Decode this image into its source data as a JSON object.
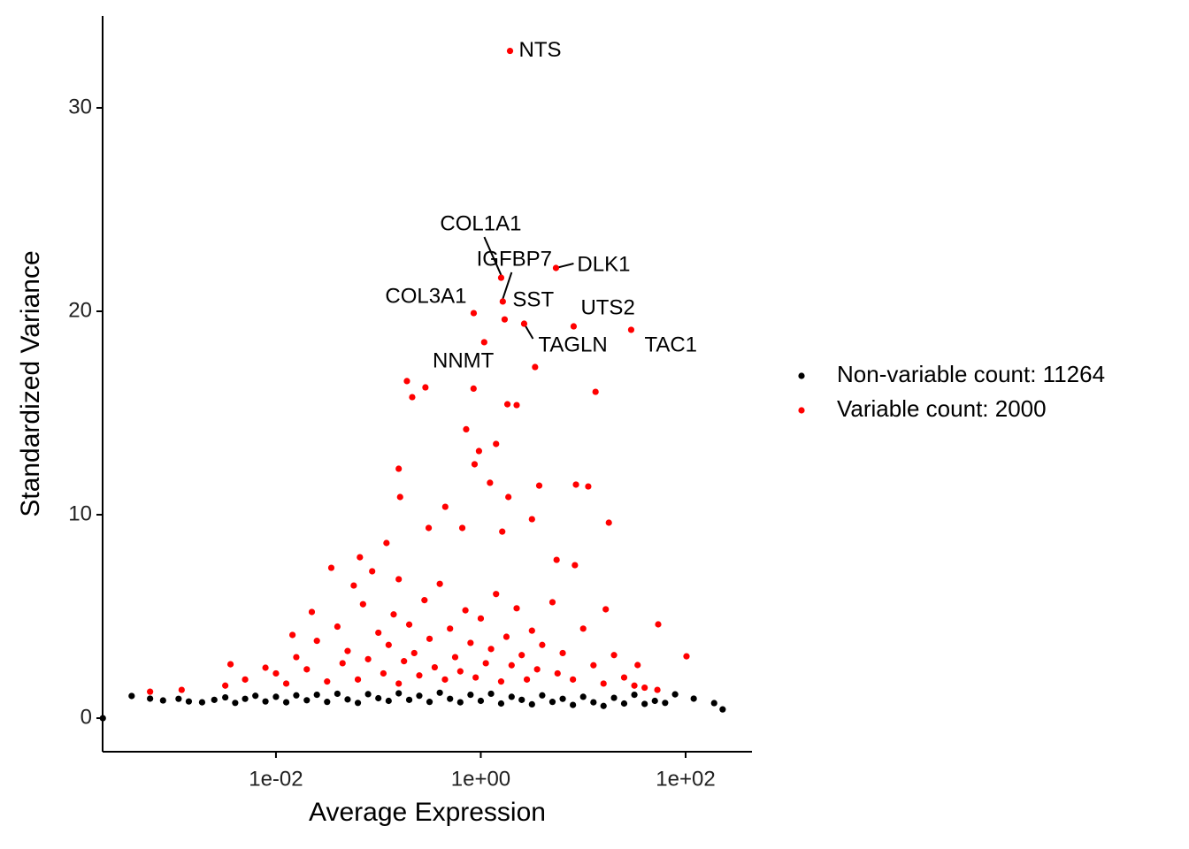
{
  "chart_data": {
    "type": "scatter",
    "x_label": "Average Expression",
    "y_label": "Standardized Variance",
    "xscale": "log",
    "xlim": [
      0.000203,
      444.6
    ],
    "ylim": [
      -1.65,
      34.52
    ],
    "xticks": [
      {
        "value": 0.01,
        "label": "1e-02"
      },
      {
        "value": 1,
        "label": "1e+00"
      },
      {
        "value": 100,
        "label": "1e+02"
      }
    ],
    "yticks": [
      0,
      10,
      20,
      30
    ],
    "legend": "right",
    "series": [
      {
        "name": "Non-variable count: 11264",
        "color": "#000000",
        "x": [
          0.000204,
          0.00039,
          0.00059,
          0.00079,
          0.00112,
          0.00141,
          0.0019,
          0.0025,
          0.0032,
          0.004,
          0.005,
          0.0063,
          0.0079,
          0.01,
          0.0126,
          0.0158,
          0.02,
          0.0251,
          0.0316,
          0.0398,
          0.0501,
          0.0631,
          0.0794,
          0.1,
          0.126,
          0.158,
          0.2,
          0.251,
          0.316,
          0.398,
          0.501,
          0.631,
          0.794,
          1,
          1.26,
          1.58,
          2,
          2.51,
          3.16,
          3.98,
          5.01,
          6.31,
          7.94,
          10,
          12.6,
          15.8,
          20,
          25.1,
          31.6,
          39.8,
          50.1,
          63.1,
          79,
          120,
          190,
          230
        ],
        "values": [
          0.0,
          1.09,
          0.96,
          0.87,
          0.95,
          0.82,
          0.78,
          0.9,
          1.02,
          0.75,
          0.95,
          1.1,
          0.82,
          1.05,
          0.78,
          1.12,
          0.88,
          1.15,
          0.8,
          1.2,
          0.92,
          0.75,
          1.18,
          0.98,
          0.85,
          1.22,
          0.9,
          1.1,
          0.8,
          1.25,
          0.95,
          0.78,
          1.15,
          0.85,
          1.2,
          0.72,
          1.05,
          0.9,
          0.68,
          1.12,
          0.8,
          0.95,
          0.65,
          1.05,
          0.78,
          0.6,
          1.0,
          0.72,
          1.15,
          0.7,
          0.85,
          0.75,
          1.17,
          0.96,
          0.74,
          0.43
        ]
      },
      {
        "name": "Variable count: 2000",
        "color": "#ff0000",
        "x": [
          0.00059,
          0.0012,
          0.0036,
          0.0079,
          0.0145,
          0.0224,
          0.0347,
          0.0575,
          0.066,
          0.087,
          0.12,
          0.158,
          0.158,
          0.163,
          0.19,
          0.214,
          0.288,
          0.31,
          0.45,
          0.66,
          0.72,
          0.85,
          0.87,
          0.96,
          1.23,
          1.41,
          1.62,
          1.82,
          1.86,
          2.24,
          3.16,
          3.39,
          3.72,
          5.5,
          8.3,
          8.5,
          11.2,
          13.2,
          17.8,
          16.6,
          34,
          54,
          102,
          53,
          0.0032,
          0.005,
          0.01,
          0.0126,
          0.0158,
          0.02,
          0.0251,
          0.0316,
          0.0398,
          0.0447,
          0.0501,
          0.0631,
          0.0708,
          0.0794,
          0.1,
          0.112,
          0.126,
          0.141,
          0.158,
          0.178,
          0.2,
          0.224,
          0.251,
          0.282,
          0.316,
          0.355,
          0.398,
          0.447,
          0.501,
          0.562,
          0.631,
          0.708,
          0.794,
          0.891,
          1,
          1.12,
          1.26,
          1.41,
          1.58,
          1.78,
          2,
          2.24,
          2.51,
          2.82,
          3.16,
          3.55,
          3.98,
          5.01,
          5.62,
          6.31,
          7.94,
          10,
          12.6,
          15.8,
          20,
          25.1,
          31.6,
          39.8
        ],
        "values": [
          1.3,
          1.39,
          2.65,
          2.48,
          4.09,
          5.22,
          7.39,
          6.52,
          7.91,
          7.22,
          8.61,
          6.83,
          12.26,
          10.87,
          16.57,
          15.78,
          16.26,
          9.35,
          10.39,
          9.35,
          14.2,
          16.2,
          12.48,
          13.13,
          11.57,
          13.48,
          9.17,
          15.43,
          10.87,
          15.39,
          9.78,
          17.26,
          11.43,
          7.78,
          7.52,
          11.48,
          11.39,
          16.04,
          9.61,
          5.35,
          2.61,
          4.61,
          3.04,
          1.39,
          1.6,
          1.9,
          2.2,
          1.7,
          3.0,
          2.4,
          3.8,
          1.8,
          4.5,
          2.7,
          3.3,
          1.9,
          5.6,
          2.9,
          4.2,
          2.2,
          3.6,
          5.1,
          1.7,
          2.8,
          4.6,
          3.2,
          2.1,
          5.8,
          3.9,
          2.5,
          6.6,
          1.9,
          4.4,
          3.0,
          2.3,
          5.3,
          3.7,
          2.0,
          4.9,
          2.7,
          3.4,
          6.1,
          1.8,
          4.0,
          2.6,
          5.4,
          3.1,
          1.9,
          4.3,
          2.4,
          3.6,
          5.7,
          2.2,
          3.2,
          1.9,
          4.4,
          2.6,
          1.7,
          3.1,
          2.0,
          1.6,
          1.5
        ]
      }
    ],
    "annotations": [
      {
        "text": "NTS",
        "x": 1.93,
        "y": 32.8
      },
      {
        "text": "COL1A1",
        "x": 1.58,
        "y": 21.65
      },
      {
        "text": "IGFBP7",
        "x": 1.64,
        "y": 20.48
      },
      {
        "text": "DLK1",
        "x": 5.42,
        "y": 22.13
      },
      {
        "text": "COL3A1",
        "x": 0.853,
        "y": 19.91
      },
      {
        "text": "SST",
        "x": 1.71,
        "y": 19.6
      },
      {
        "text": "TAGLN",
        "x": 2.65,
        "y": 19.39
      },
      {
        "text": "UTS2",
        "x": 8.07,
        "y": 19.26
      },
      {
        "text": "TAC1",
        "x": 29.4,
        "y": 19.09
      },
      {
        "text": "NNMT",
        "x": 1.08,
        "y": 18.48
      }
    ]
  }
}
